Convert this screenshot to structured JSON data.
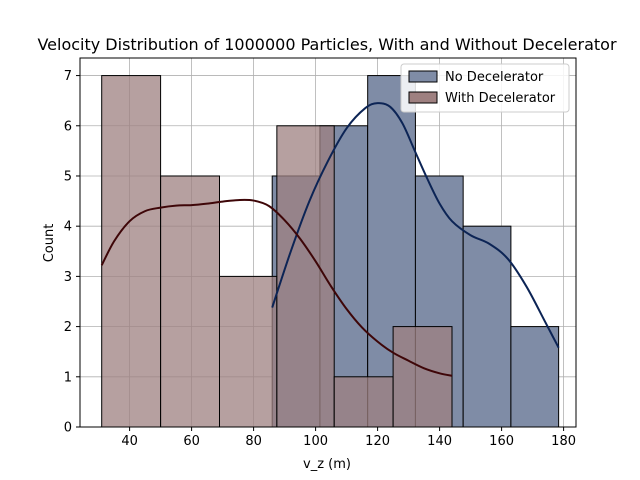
{
  "chart_data": {
    "type": "bar",
    "subtype": "histogram-with-kde",
    "title": "Velocity Distribution of 1000000 Particles, With and Without Decelerator",
    "xlabel": "v_z (m)",
    "ylabel": "Count",
    "xlim": [
      24,
      184
    ],
    "ylim": [
      0,
      7.35
    ],
    "xticks": [
      40,
      60,
      80,
      100,
      120,
      140,
      160,
      180
    ],
    "yticks": [
      0,
      1,
      2,
      3,
      4,
      5,
      6,
      7
    ],
    "grid": true,
    "legend_position": "top-right",
    "series": [
      {
        "name": "No Decelerator",
        "bar_color": "#7f8ca6",
        "line_color": "#0c2455",
        "bins": [
          {
            "x0": 86.0,
            "x1": 101.4,
            "value": 5
          },
          {
            "x0": 101.4,
            "x1": 116.8,
            "value": 6
          },
          {
            "x0": 116.8,
            "x1": 132.2,
            "value": 7
          },
          {
            "x0": 132.2,
            "x1": 147.6,
            "value": 5
          },
          {
            "x0": 147.6,
            "x1": 163.0,
            "value": 4
          },
          {
            "x0": 163.0,
            "x1": 178.4,
            "value": 2
          }
        ],
        "kde": {
          "x": [
            86,
            92,
            98,
            104,
            110,
            116,
            120,
            124,
            128,
            132,
            136,
            140,
            144,
            150,
            156,
            162,
            168,
            174,
            178.4
          ],
          "y": [
            2.38,
            3.5,
            4.5,
            5.3,
            5.95,
            6.35,
            6.45,
            6.38,
            6.05,
            5.5,
            4.95,
            4.45,
            4.1,
            3.82,
            3.65,
            3.35,
            2.8,
            2.1,
            1.58
          ]
        }
      },
      {
        "name": "With Decelerator",
        "bar_color": "#9e8080",
        "line_color": "#3e0608",
        "bins": [
          {
            "x0": 31.0,
            "x1": 50.0,
            "value": 7
          },
          {
            "x0": 50.0,
            "x1": 69.0,
            "value": 5
          },
          {
            "x0": 69.0,
            "x1": 87.5,
            "value": 3
          },
          {
            "x0": 87.5,
            "x1": 106.0,
            "value": 6
          },
          {
            "x0": 106.0,
            "x1": 125.0,
            "value": 1
          },
          {
            "x0": 125.0,
            "x1": 144.0,
            "value": 2
          }
        ],
        "kde": {
          "x": [
            31,
            35,
            40,
            45,
            50,
            55,
            60,
            65,
            70,
            75,
            80,
            85,
            90,
            95,
            100,
            105,
            110,
            115,
            120,
            125,
            130,
            135,
            140,
            144
          ],
          "y": [
            3.22,
            3.7,
            4.1,
            4.3,
            4.37,
            4.41,
            4.42,
            4.45,
            4.49,
            4.52,
            4.51,
            4.4,
            4.12,
            3.75,
            3.3,
            2.8,
            2.35,
            1.98,
            1.7,
            1.48,
            1.32,
            1.17,
            1.07,
            1.02
          ]
        }
      }
    ]
  }
}
